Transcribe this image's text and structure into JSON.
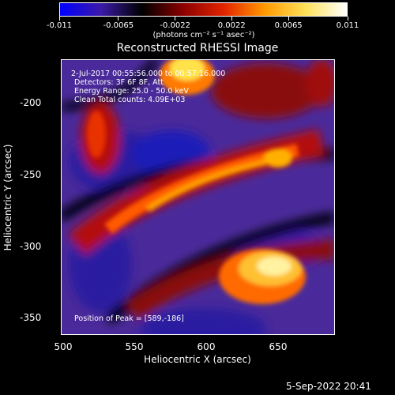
{
  "colorbar": {
    "tick_labels": [
      "-0.011",
      "-0.0065",
      "-0.0022",
      "0.0022",
      "0.0065",
      "0.011"
    ],
    "units": "(photons cm⁻² s⁻¹ asec⁻²)",
    "colors": [
      "#0000ff",
      "#3b1aa8",
      "#000000",
      "#8b0000",
      "#e32400",
      "#ff9a00",
      "#ffe25a",
      "#ffffff"
    ]
  },
  "title": "Reconstructed RHESSI Image",
  "annotations": {
    "time_range": "2-Jul-2017 00:55:56.000 to 00:57:16.000",
    "detectors": "Detectors: 3F 6F 8F, Att",
    "energy_range": "Energy Range: 25.0 - 50.0 keV",
    "clean": "Clean     Total counts: 4.09E+03",
    "peak": "Position of Peak = [589,-186]"
  },
  "axes": {
    "xlabel": "Heliocentric X (arcsec)",
    "ylabel": "Heliocentric Y (arcsec)",
    "xticks": [
      "500",
      "550",
      "600",
      "650"
    ],
    "yticks": [
      "-200",
      "-250",
      "-300",
      "-350"
    ]
  },
  "timestamp": "5-Sep-2022 20:41"
}
